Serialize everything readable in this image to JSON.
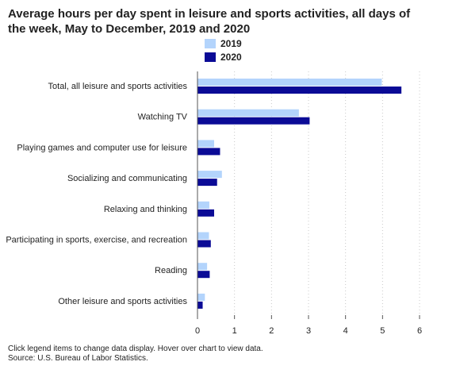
{
  "chart_data": {
    "type": "bar",
    "orientation": "horizontal",
    "title": "Average hours per day spent in leisure and sports activities, all days of the week, May to December, 2019 and 2020",
    "categories": [
      "Total, all leisure and sports activities",
      "Watching TV",
      "Playing games and computer use for leisure",
      "Socializing and communicating",
      "Relaxing and thinking",
      "Participating in sports, exercise, and recreation",
      "Reading",
      "Other leisure and sports activities"
    ],
    "series": [
      {
        "name": "2019",
        "color": "#b3d4fc",
        "values": [
          4.98,
          2.74,
          0.45,
          0.66,
          0.32,
          0.31,
          0.26,
          0.2
        ]
      },
      {
        "name": "2020",
        "color": "#0b0b96",
        "values": [
          5.51,
          3.03,
          0.61,
          0.53,
          0.45,
          0.36,
          0.33,
          0.14
        ]
      }
    ],
    "xlim": [
      0,
      6
    ],
    "xticks": [
      "0",
      "1",
      "2",
      "3",
      "4",
      "5",
      "6"
    ],
    "grid": "vertical dotted",
    "legend_position": "top"
  },
  "notes": {
    "line1": "Click legend items to change data display. Hover over chart to view data.",
    "line2": "Source: U.S. Bureau of Labor Statistics."
  }
}
